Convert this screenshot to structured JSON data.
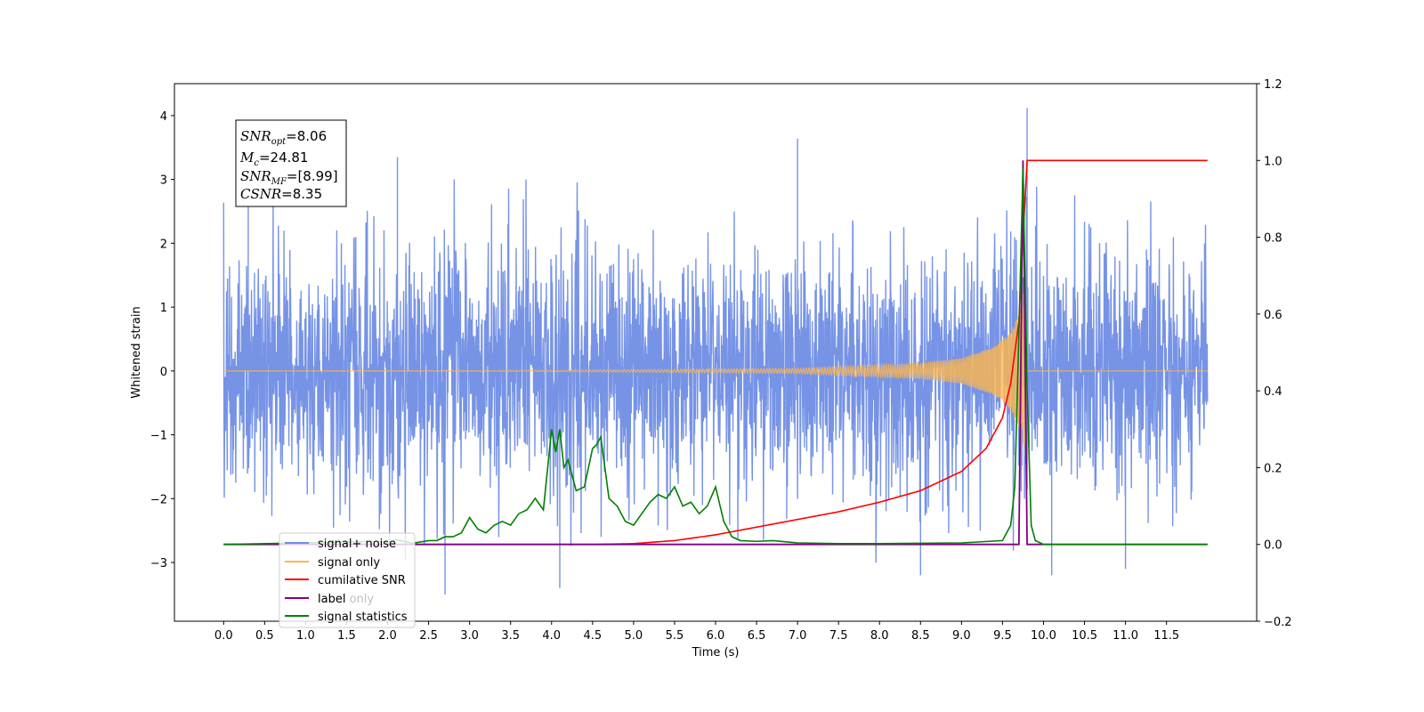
{
  "chart_data": {
    "type": "line",
    "xlabel": "Time (s)",
    "ylabel": "Whitened strain",
    "y2label": "",
    "xlim": [
      -0.6,
      12.6
    ],
    "ylim": [
      -3.92,
      4.5
    ],
    "y2lim": [
      -0.2,
      1.2
    ],
    "xticks": [
      "0.0",
      "0.5",
      "1.0",
      "1.5",
      "2.0",
      "2.5",
      "3.0",
      "3.5",
      "4.0",
      "4.5",
      "5.0",
      "5.5",
      "6.0",
      "6.5",
      "7.0",
      "7.5",
      "8.0",
      "8.5",
      "9.0",
      "9.5",
      "10.0",
      "10.5",
      "11.0",
      "11.5"
    ],
    "yticks": [
      "−3",
      "−2",
      "−1",
      "0",
      "1",
      "2",
      "3",
      "4"
    ],
    "y2ticks": [
      "−0.2",
      "0.0",
      "0.2",
      "0.4",
      "0.6",
      "0.8",
      "1.0",
      "1.2"
    ],
    "legend": {
      "placement": "lower-left",
      "entries": [
        {
          "label": "signal+ noise",
          "color": "#6f8de5"
        },
        {
          "label": "signal only",
          "color": "#ffb84d"
        },
        {
          "label": "cumilative SNR",
          "color": "#ff0000"
        },
        {
          "label": "label",
          "color": "#800080"
        },
        {
          "label": "signal statistics",
          "color": "#008000"
        }
      ],
      "hidden_label": "label only"
    },
    "annotation": {
      "snr_opt_label": "SNR",
      "snr_opt_sub": "opt",
      "snr_opt_value": "=8.06",
      "mc_label": "M",
      "mc_sub": "c",
      "mc_value": "=24.81",
      "snr_mf_label": "SNR",
      "snr_mf_sub": "MF",
      "snr_mf_value": "=[8.99]",
      "csnr_label": "CSNR",
      "csnr_value": "=8.35"
    },
    "series": [
      {
        "name": "signal+ noise",
        "axis": "left",
        "color": "#6f8de5",
        "description_range": [
          0.0,
          12.0
        ],
        "typical_min": -2.3,
        "typical_max": 2.3,
        "spikes": [
          [
            0.3,
            3.7
          ],
          [
            2.12,
            3.35
          ],
          [
            7.0,
            3.64
          ],
          [
            9.8,
            4.12
          ],
          [
            2.7,
            -3.5
          ],
          [
            4.1,
            -3.4
          ],
          [
            10.1,
            -3.2
          ],
          [
            8.5,
            -3.2
          ],
          [
            11.0,
            -3.1
          ]
        ]
      },
      {
        "name": "signal only",
        "axis": "left",
        "color": "#ffb84d",
        "description": "chirp",
        "amplitude_points": [
          [
            0.0,
            0.0
          ],
          [
            4.0,
            0.01
          ],
          [
            7.0,
            0.04
          ],
          [
            8.5,
            0.12
          ],
          [
            9.0,
            0.2
          ],
          [
            9.4,
            0.38
          ],
          [
            9.6,
            0.6
          ],
          [
            9.7,
            0.9
          ],
          [
            9.78,
            1.35
          ],
          [
            9.8,
            0.0
          ],
          [
            12.0,
            0.0
          ]
        ]
      },
      {
        "name": "cumilative SNR",
        "axis": "right",
        "color": "#ff0000",
        "x": [
          0.0,
          4.5,
          5.0,
          5.5,
          6.0,
          6.5,
          7.0,
          7.5,
          8.0,
          8.5,
          9.0,
          9.3,
          9.5,
          9.6,
          9.7,
          9.75,
          9.8,
          12.0
        ],
        "y": [
          0.0,
          0.0,
          0.002,
          0.01,
          0.025,
          0.045,
          0.065,
          0.085,
          0.11,
          0.14,
          0.19,
          0.25,
          0.33,
          0.42,
          0.58,
          0.8,
          1.0,
          1.0
        ]
      },
      {
        "name": "label",
        "axis": "right",
        "color": "#800080",
        "x": [
          0.0,
          9.7,
          9.75,
          9.8,
          12.0
        ],
        "y": [
          0.0,
          0.0,
          1.0,
          0.0,
          0.0
        ]
      },
      {
        "name": "signal statistics",
        "axis": "right",
        "color": "#008000",
        "x": [
          0.0,
          1.9,
          2.0,
          2.1,
          2.2,
          2.3,
          2.5,
          2.6,
          2.7,
          2.8,
          2.9,
          3.0,
          3.1,
          3.2,
          3.3,
          3.4,
          3.5,
          3.6,
          3.7,
          3.8,
          3.9,
          4.0,
          4.05,
          4.1,
          4.15,
          4.2,
          4.3,
          4.4,
          4.5,
          4.55,
          4.6,
          4.7,
          4.8,
          4.9,
          5.0,
          5.1,
          5.2,
          5.3,
          5.4,
          5.5,
          5.6,
          5.7,
          5.8,
          5.9,
          6.0,
          6.1,
          6.2,
          6.3,
          6.5,
          6.7,
          7.0,
          7.5,
          8.0,
          9.0,
          9.5,
          9.6,
          9.65,
          9.7,
          9.75,
          9.8,
          9.85,
          9.9,
          10.0,
          12.0
        ],
        "y": [
          0.0,
          0.008,
          0.005,
          0.012,
          0.008,
          0.003,
          0.01,
          0.01,
          0.02,
          0.02,
          0.03,
          0.07,
          0.04,
          0.03,
          0.05,
          0.06,
          0.05,
          0.08,
          0.09,
          0.12,
          0.09,
          0.3,
          0.24,
          0.3,
          0.2,
          0.22,
          0.14,
          0.15,
          0.25,
          0.26,
          0.28,
          0.12,
          0.1,
          0.06,
          0.05,
          0.08,
          0.11,
          0.13,
          0.12,
          0.15,
          0.1,
          0.11,
          0.08,
          0.1,
          0.15,
          0.06,
          0.02,
          0.01,
          0.008,
          0.01,
          0.004,
          0.002,
          0.002,
          0.004,
          0.01,
          0.05,
          0.15,
          0.55,
          0.98,
          0.4,
          0.05,
          0.01,
          0.0,
          0.0
        ]
      }
    ]
  }
}
